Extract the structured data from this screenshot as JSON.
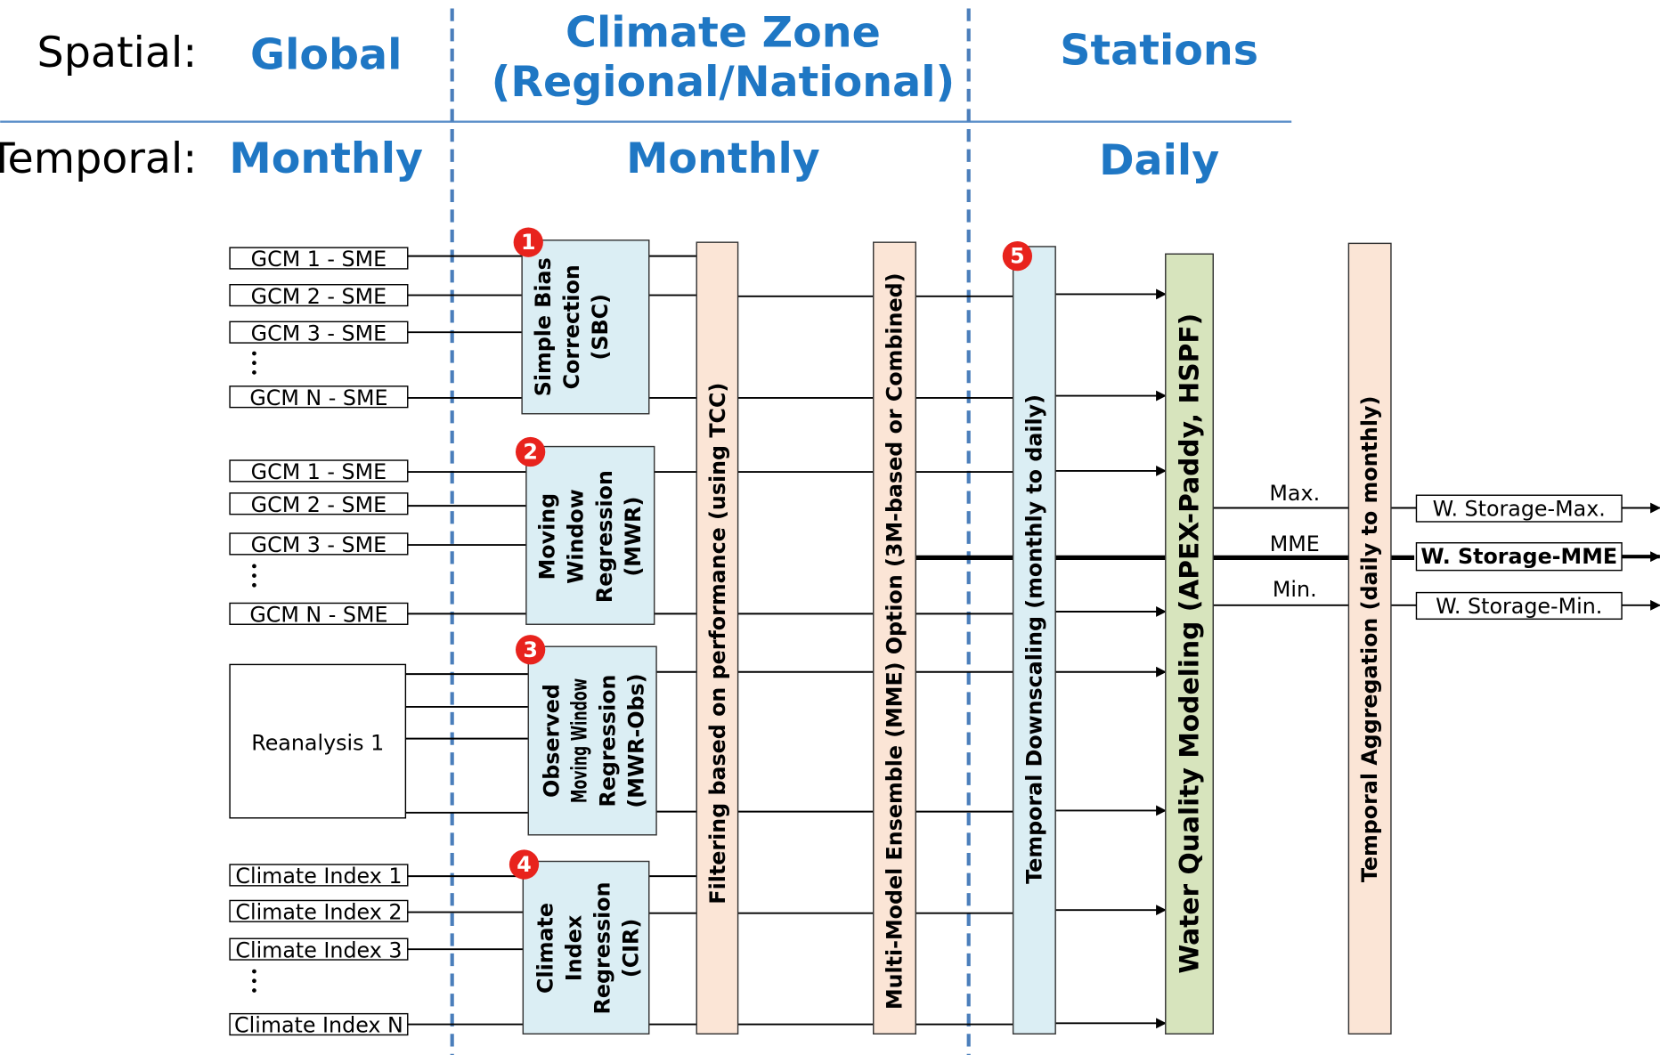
{
  "header": {
    "spatial_label": "Spatial:",
    "temporal_label": "Temporal:",
    "columns": [
      {
        "spatial": [
          "Global"
        ],
        "temporal": "Monthly"
      },
      {
        "spatial": [
          "Climate Zone",
          "(Regional/National)"
        ],
        "temporal": "Monthly"
      },
      {
        "spatial": [
          "Stations"
        ],
        "temporal": "Daily"
      }
    ]
  },
  "input_groups": [
    [
      "GCM 1 - SME",
      "GCM 2 - SME",
      "GCM 3 - SME",
      "GCM N - SME"
    ],
    [
      "GCM 1 - SME",
      "GCM 2 - SME",
      "GCM 3 - SME",
      "GCM N - SME"
    ],
    [
      "Reanalysis 1"
    ],
    [
      "Climate Index 1",
      "Climate Index 2",
      "Climate Index 3",
      "Climate Index N"
    ]
  ],
  "methods": [
    {
      "number": "1",
      "label": [
        "Simple Bias",
        "Correction",
        "(SBC)"
      ]
    },
    {
      "number": "2",
      "label": [
        "Moving",
        "Window",
        "Regression",
        "(MWR)"
      ]
    },
    {
      "number": "3",
      "label": [
        "Observed",
        "Moving Window",
        "Regression",
        "(MWR-Obs)"
      ]
    },
    {
      "number": "4",
      "label": [
        "Climate",
        "Index",
        "Regression",
        "(CIR)"
      ]
    }
  ],
  "stages": [
    {
      "label": "Filtering based on performance (using TCC)"
    },
    {
      "label": "Multi-Model Ensemble (MME) Option (3M-based or Combined)"
    },
    {
      "number": "5",
      "label": "Temporal Downscaling (monthly to daily)"
    },
    {
      "label": "Water Quality Modeling (APEX-Paddy, HSPF)"
    },
    {
      "label": "Temporal Aggregation (daily to monthly)"
    }
  ],
  "outputs": [
    {
      "line_label": "Max.",
      "label": "W. Storage-Max."
    },
    {
      "line_label": "MME",
      "label": "W. Storage-MME"
    },
    {
      "line_label": "Min.",
      "label": "W. Storage-Min."
    }
  ]
}
